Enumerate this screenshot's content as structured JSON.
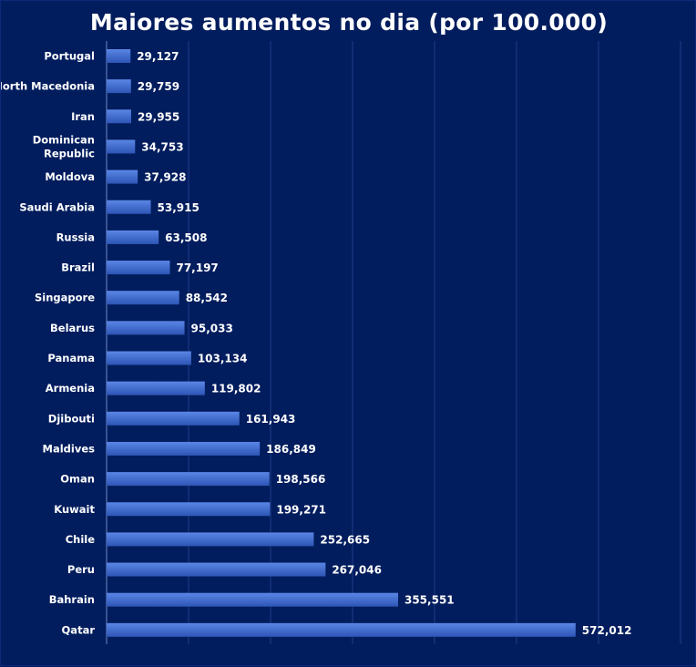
{
  "chart_data": {
    "type": "bar",
    "orientation": "horizontal",
    "title": "Maiores aumentos no dia (por 100.000)",
    "xlabel": "",
    "ylabel": "",
    "xlim": [
      0,
      700
    ],
    "grid": true,
    "categories": [
      "Portugal",
      "North Macedonia",
      "Iran",
      "Dominican Republic",
      "Moldova",
      "Saudi Arabia",
      "Russia",
      "Brazil",
      "Singapore",
      "Belarus",
      "Panama",
      "Armenia",
      "Djibouti",
      "Maldives",
      "Oman",
      "Kuwait",
      "Chile",
      "Peru",
      "Bahrain",
      "Qatar"
    ],
    "category_label_lines": [
      [
        "Portugal"
      ],
      [
        "North Macedonia"
      ],
      [
        "Iran"
      ],
      [
        "Dominican",
        "Republic"
      ],
      [
        "Moldova"
      ],
      [
        "Saudi Arabia"
      ],
      [
        "Russia"
      ],
      [
        "Brazil"
      ],
      [
        "Singapore"
      ],
      [
        "Belarus"
      ],
      [
        "Panama"
      ],
      [
        "Armenia"
      ],
      [
        "Djibouti"
      ],
      [
        "Maldives"
      ],
      [
        "Oman"
      ],
      [
        "Kuwait"
      ],
      [
        "Chile"
      ],
      [
        "Peru"
      ],
      [
        "Bahrain"
      ],
      [
        "Qatar"
      ]
    ],
    "values": [
      29.127,
      29.759,
      29.955,
      34.753,
      37.928,
      53.915,
      63.508,
      77.197,
      88.542,
      95.033,
      103.134,
      119.802,
      161.943,
      186.849,
      198.566,
      199.271,
      252.665,
      267.046,
      355.551,
      572.012
    ],
    "value_labels": [
      "29,127",
      "29,759",
      "29,955",
      "34,753",
      "37,928",
      "53,915",
      "63,508",
      "77,197",
      "88,542",
      "95,033",
      "103,134",
      "119,802",
      "161,943",
      "186,849",
      "198,566",
      "199,271",
      "252,665",
      "267,046",
      "355,551",
      "572,012"
    ],
    "colors": {
      "background": "#021d5e",
      "bar_top": "#5a86e6",
      "bar_bottom": "#2d55b5",
      "grid": "#1d3a86",
      "text": "#ffffff"
    }
  }
}
